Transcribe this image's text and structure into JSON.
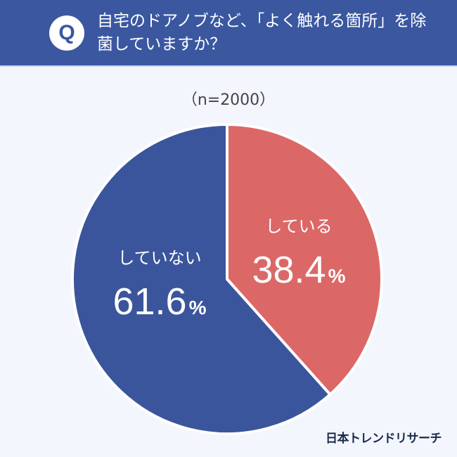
{
  "header": {
    "badge": "Q",
    "question": "自宅のドアノブなど、「よく触れる箇所」を除菌していますか？"
  },
  "sample": "（n=2000）",
  "credit": "日本トレンドリサーチ",
  "chart_data": {
    "type": "pie",
    "title": "自宅のドアノブなど、「よく触れる箇所」を除菌していますか？",
    "subtitle": "（n=2000）",
    "unit": "%",
    "slices": [
      {
        "label": "している",
        "value": 38.4,
        "display": "38.4",
        "color": "#dc6767"
      },
      {
        "label": "していない",
        "value": 61.6,
        "display": "61.6",
        "color": "#3a559c"
      }
    ]
  }
}
